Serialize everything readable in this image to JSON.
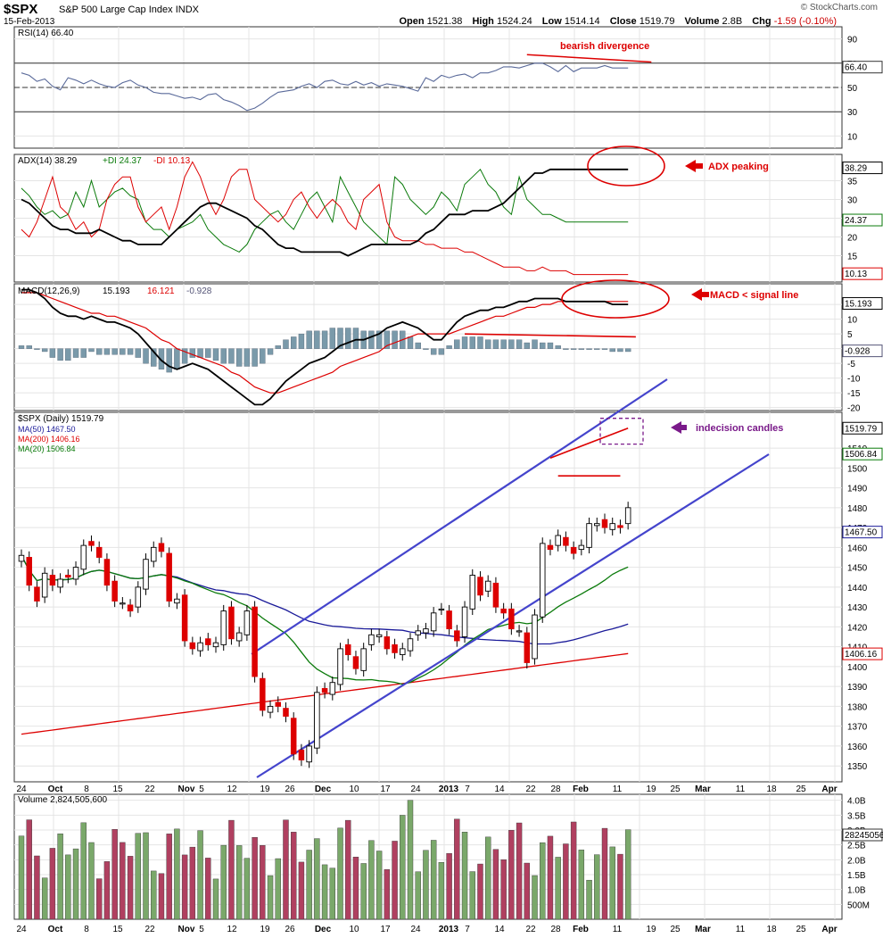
{
  "header": {
    "symbol": "$SPX",
    "name": "S&P 500 Large Cap Index",
    "exchange": "INDX",
    "date": "15-Feb-2013",
    "open_label": "Open",
    "open": "1521.38",
    "high_label": "High",
    "high": "1524.24",
    "low_label": "Low",
    "low": "1514.14",
    "close_label": "Close",
    "close": "1519.79",
    "volume_label": "Volume",
    "volume": "2.8B",
    "chg_label": "Chg",
    "chg": "-1.59 (-0.10%)",
    "watermark": "© StockCharts.com"
  },
  "colors": {
    "up": "#ffffff",
    "down": "#dd0000",
    "ma50": "#1a1a99",
    "ma200": "#dd0000",
    "ma20": "#0a7a0a",
    "channel": "#4444cc",
    "rsi": "#5a6a9a",
    "annotation": "#dd0000",
    "arrow_purple": "#7a1a8a",
    "vol_up": "#7aa86a",
    "vol_down": "#b04060",
    "hist": "#7a9aaa"
  },
  "chart_data": [
    {
      "type": "line",
      "panel": "rsi",
      "legend": "RSI(14) 66.40",
      "series": [
        {
          "name": "RSI(14)",
          "values": [
            62,
            60,
            55,
            57,
            51,
            48,
            58,
            56,
            53,
            56,
            53,
            51,
            50,
            54,
            56,
            52,
            50,
            46,
            45,
            45,
            43,
            41,
            42,
            40,
            44,
            45,
            40,
            38,
            35,
            31,
            33,
            37,
            42,
            46,
            47,
            48,
            51,
            53,
            50,
            55,
            56,
            53,
            52,
            55,
            52,
            54,
            51,
            53,
            52,
            51,
            49,
            47,
            58,
            55,
            60,
            58,
            60,
            61,
            58,
            62,
            62,
            64,
            67,
            67,
            66,
            68,
            70,
            70,
            67,
            63,
            68,
            63,
            66,
            66,
            66,
            68,
            66,
            66,
            66
          ]
        }
      ],
      "ylim": [
        0,
        100
      ],
      "yticks": [
        "90",
        "70",
        "50",
        "30",
        "10"
      ],
      "current_label": "66.40",
      "annotation": "bearish divergence"
    },
    {
      "type": "line",
      "panel": "adx",
      "legend": "ADX(14) 38.29",
      "legend_pdi": "+DI 24.37",
      "legend_mdi": "-DI 10.13",
      "series": [
        {
          "name": "ADX(14)",
          "values": [
            30,
            29,
            27,
            25,
            23,
            22,
            22,
            21,
            21,
            21,
            22,
            21,
            20,
            19,
            19,
            18,
            18,
            18,
            18,
            20,
            22,
            24,
            26,
            28,
            29,
            29,
            28,
            27,
            26,
            25,
            23,
            22,
            20,
            18,
            17,
            17,
            16,
            16,
            16,
            16,
            16,
            16,
            15,
            16,
            17,
            18,
            18,
            18,
            18,
            18,
            18,
            19,
            21,
            22,
            24,
            26,
            26,
            26,
            27,
            27,
            27,
            28,
            29,
            31,
            33,
            35,
            37,
            37,
            38,
            38,
            38,
            38,
            38,
            38,
            38,
            38,
            38,
            38,
            38
          ]
        },
        {
          "name": "+DI",
          "values": [
            33,
            31,
            28,
            26,
            27,
            25,
            26,
            32,
            28,
            35,
            28,
            30,
            32,
            33,
            31,
            30,
            24,
            22,
            22,
            20,
            22,
            23,
            24,
            26,
            22,
            20,
            18,
            17,
            16,
            18,
            22,
            24,
            26,
            27,
            24,
            22,
            26,
            30,
            32,
            28,
            24,
            36,
            32,
            28,
            24,
            22,
            20,
            18,
            36,
            34,
            30,
            28,
            26,
            28,
            32,
            30,
            27,
            34,
            36,
            38,
            34,
            32,
            28,
            26,
            36,
            30,
            28,
            26,
            26,
            25,
            24,
            24,
            24,
            24,
            24,
            24,
            24,
            24,
            24
          ]
        },
        {
          "name": "-DI",
          "values": [
            22,
            20,
            24,
            30,
            36,
            28,
            26,
            22,
            24,
            20,
            22,
            30,
            34,
            36,
            36,
            28,
            24,
            26,
            28,
            22,
            28,
            36,
            40,
            36,
            30,
            26,
            30,
            36,
            38,
            38,
            30,
            28,
            26,
            24,
            26,
            30,
            32,
            28,
            25,
            28,
            30,
            28,
            24,
            22,
            30,
            32,
            34,
            24,
            20,
            19,
            19,
            19,
            18,
            18,
            17,
            17,
            17,
            16,
            16,
            15,
            14,
            13,
            12,
            12,
            12,
            11,
            11,
            12,
            11,
            11,
            11,
            10,
            10,
            10,
            10,
            10,
            10,
            10,
            10
          ]
        }
      ],
      "ylim": [
        8,
        42
      ],
      "yticks": [
        "35",
        "30",
        "25",
        "20",
        "15"
      ],
      "right_labels": [
        "38.29",
        "24.37",
        "10.13"
      ],
      "annotation": "ADX peaking"
    },
    {
      "type": "bar",
      "panel": "macd",
      "legend": "MACD(12,26,9)",
      "legend_macd": "15.193",
      "legend_signal": "16.121",
      "legend_hist": "-0.928",
      "series": [
        {
          "name": "MACD(12,26,9)",
          "values": [
            20,
            20,
            19,
            17,
            14,
            12,
            11,
            11,
            10,
            11,
            10,
            9,
            9,
            8,
            7,
            5,
            2,
            -1,
            -4,
            -6,
            -7,
            -6,
            -5,
            -6,
            -7,
            -9,
            -11,
            -13,
            -15,
            -17,
            -19,
            -19,
            -17,
            -14,
            -11,
            -9,
            -7,
            -5,
            -4,
            -3,
            -1,
            1,
            2,
            3,
            3,
            4,
            5,
            7,
            8,
            9,
            8,
            7,
            5,
            3,
            3,
            6,
            9,
            11,
            12,
            13,
            13,
            14,
            14,
            15,
            16,
            16,
            17,
            17,
            17,
            17,
            16,
            16,
            16,
            16,
            16,
            16,
            15,
            15,
            15
          ]
        },
        {
          "name": "Signal",
          "values": [
            19,
            19,
            19,
            18,
            17,
            16,
            15,
            14,
            13,
            12,
            12,
            11,
            11,
            10,
            9,
            8,
            7,
            5,
            3,
            2,
            0,
            -1,
            -2,
            -3,
            -4,
            -5,
            -6,
            -8,
            -9,
            -11,
            -13,
            -14,
            -15,
            -15,
            -14,
            -13,
            -12,
            -11,
            -10,
            -9,
            -8,
            -6,
            -5,
            -4,
            -3,
            -2,
            -1,
            1,
            2,
            3,
            4,
            5,
            5,
            5,
            5,
            5,
            6,
            7,
            8,
            9,
            10,
            11,
            11,
            12,
            13,
            14,
            14,
            15,
            15,
            16,
            16,
            16,
            16,
            16,
            16,
            16,
            16,
            16,
            16
          ]
        },
        {
          "name": "Histogram",
          "values": [
            1,
            1,
            0,
            -1,
            -3,
            -4,
            -4,
            -3,
            -3,
            -1,
            -2,
            -2,
            -2,
            -2,
            -2,
            -3,
            -5,
            -6,
            -7,
            -8,
            -7,
            -5,
            -3,
            -3,
            -3,
            -4,
            -5,
            -5,
            -6,
            -6,
            -6,
            -5,
            -2,
            1,
            3,
            4,
            5,
            6,
            6,
            6,
            7,
            7,
            7,
            7,
            6,
            6,
            6,
            6,
            6,
            6,
            4,
            2,
            0,
            -2,
            -2,
            1,
            3,
            4,
            4,
            4,
            3,
            3,
            3,
            3,
            3,
            2,
            3,
            2,
            2,
            1,
            0,
            0,
            0,
            0,
            0,
            0,
            -1,
            -1,
            -1
          ]
        }
      ],
      "ylim": [
        -21,
        22
      ],
      "yticks": [
        "15",
        "10",
        "5",
        "0",
        "-5",
        "-10",
        "-15",
        "-20"
      ],
      "right_labels": [
        "15.193",
        "-0.928"
      ],
      "annotation": "MACD < signal line"
    },
    {
      "type": "candlestick",
      "panel": "price",
      "legend": "$SPX (Daily) 1519.79",
      "legend_ma50": "MA(50) 1467.50",
      "legend_ma200": "MA(200) 1406.16",
      "legend_ma20": "MA(20) 1506.84",
      "x": [
        "2012-09-24",
        "2012-09-25",
        "2012-09-26",
        "2012-09-27",
        "2012-09-28",
        "2012-10-01",
        "2012-10-02",
        "2012-10-03",
        "2012-10-04",
        "2012-10-05",
        "2012-10-08",
        "2012-10-09",
        "2012-10-10",
        "2012-10-11",
        "2012-10-12",
        "2012-10-15",
        "2012-10-16",
        "2012-10-17",
        "2012-10-18",
        "2012-10-19",
        "2012-10-22",
        "2012-10-23",
        "2012-10-24",
        "2012-10-25",
        "2012-10-26",
        "2012-10-31",
        "2012-11-01",
        "2012-11-02",
        "2012-11-05",
        "2012-11-06",
        "2012-11-07",
        "2012-11-08",
        "2012-11-09",
        "2012-11-12",
        "2012-11-13",
        "2012-11-14",
        "2012-11-15",
        "2012-11-16",
        "2012-11-19",
        "2012-11-20",
        "2012-11-21",
        "2012-11-23",
        "2012-11-26",
        "2012-11-27",
        "2012-11-28",
        "2012-11-29",
        "2012-11-30",
        "2012-12-03",
        "2012-12-04",
        "2012-12-05",
        "2012-12-06",
        "2012-12-07",
        "2012-12-10",
        "2012-12-11",
        "2012-12-12",
        "2012-12-13",
        "2012-12-14",
        "2012-12-17",
        "2012-12-18",
        "2012-12-19",
        "2012-12-20",
        "2012-12-21",
        "2012-12-24",
        "2012-12-26",
        "2012-12-27",
        "2012-12-28",
        "2012-12-31",
        "2013-01-02",
        "2013-01-03",
        "2013-01-04",
        "2013-01-07",
        "2013-01-08",
        "2013-01-09",
        "2013-01-10",
        "2013-01-11",
        "2013-01-14",
        "2013-01-15",
        "2013-01-16",
        "2013-01-17"
      ],
      "ohlc": [],
      "closes": [
        1456,
        1441,
        1433,
        1447,
        1441,
        1444,
        1445,
        1450,
        1461,
        1461,
        1455,
        1441,
        1433,
        1432,
        1428,
        1440,
        1454,
        1460,
        1458,
        1433,
        1434,
        1413,
        1409,
        1412,
        1411,
        1412,
        1428,
        1414,
        1417,
        1428,
        1395,
        1378,
        1380,
        1380,
        1375,
        1356,
        1353,
        1360,
        1387,
        1387,
        1392,
        1409,
        1406,
        1399,
        1409,
        1416,
        1416,
        1409,
        1407,
        1409,
        1414,
        1418,
        1419,
        1427,
        1429,
        1419,
        1413,
        1430,
        1446,
        1436,
        1443,
        1430,
        1427,
        1419,
        1418,
        1402,
        1426,
        1462,
        1459,
        1466,
        1461,
        1457,
        1461,
        1472,
        1472,
        1470,
        1472,
        1470,
        1480
      ],
      "ylim": [
        1342,
        1528
      ],
      "yticks": [
        "1510",
        "1500",
        "1490",
        "1480",
        "1470",
        "1460",
        "1450",
        "1440",
        "1430",
        "1420",
        "1410",
        "1400",
        "1390",
        "1380",
        "1370",
        "1360",
        "1350"
      ],
      "right_labels": [
        "1519.79",
        "1506.84",
        "1467.50",
        "1406.16"
      ],
      "x_ticks": [
        "24",
        "Oct",
        "8",
        "15",
        "22",
        "Nov",
        "5",
        "12",
        "19",
        "26",
        "Dec",
        "10",
        "17",
        "24",
        "2013",
        "7",
        "14",
        "22",
        "28",
        "Feb",
        "11",
        "19",
        "25",
        "Mar",
        "11",
        "18",
        "25",
        "Apr"
      ],
      "annotation": "indecision candles"
    },
    {
      "type": "bar",
      "panel": "volume",
      "legend": "Volume 2,824,505,600",
      "yticks": [
        "4.0B",
        "3.5B",
        "3.0B",
        "2.5B",
        "2.0B",
        "1.5B",
        "1.0B",
        "500M"
      ],
      "right_label": "2824505600",
      "x_ticks": [
        "24",
        "Oct",
        "8",
        "15",
        "22",
        "Nov",
        "5",
        "12",
        "19",
        "26",
        "Dec",
        "10",
        "17",
        "24",
        "2013",
        "7",
        "14",
        "22",
        "28",
        "Feb",
        "11",
        "19",
        "25",
        "Mar",
        "11",
        "18",
        "25",
        "Apr"
      ]
    }
  ]
}
